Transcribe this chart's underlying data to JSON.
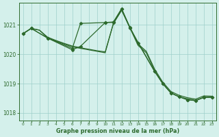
{
  "background_color": "#d4f0eb",
  "line_color": "#2d6a2d",
  "grid_color": "#9ecfca",
  "title": "Graphe pression niveau de la mer (hPa)",
  "ylim": [
    1017.75,
    1021.75
  ],
  "xlim": [
    -0.5,
    23.5
  ],
  "yticks": [
    1018,
    1019,
    1020,
    1021
  ],
  "figsize": [
    3.2,
    2.0
  ],
  "dpi": 100,
  "line1_x": [
    0,
    1,
    2,
    3,
    4,
    5,
    6,
    7,
    8,
    9,
    10,
    11,
    12,
    13,
    14,
    15,
    16,
    17,
    18,
    19,
    20,
    21,
    22,
    23
  ],
  "line1_y": [
    1020.7,
    1020.88,
    1020.82,
    1020.58,
    1020.47,
    1020.37,
    1020.28,
    1020.22,
    1020.17,
    1020.12,
    1020.08,
    1021.05,
    1021.5,
    1020.92,
    1020.35,
    1020.1,
    1019.5,
    1019.05,
    1018.73,
    1018.6,
    1018.52,
    1018.47,
    1018.58,
    1018.57
  ],
  "line2_x": [
    0,
    1,
    2,
    3,
    4,
    5,
    6,
    7,
    8,
    9,
    10,
    11,
    12,
    13,
    14,
    15,
    16,
    17,
    18,
    19,
    20,
    21,
    22,
    23
  ],
  "line2_y": [
    1020.7,
    1020.88,
    1020.82,
    1020.55,
    1020.45,
    1020.35,
    1020.25,
    1020.2,
    1020.15,
    1020.1,
    1020.05,
    1021.05,
    1021.5,
    1020.9,
    1020.3,
    1020.05,
    1019.45,
    1019.0,
    1018.68,
    1018.55,
    1018.48,
    1018.43,
    1018.53,
    1018.53
  ],
  "line3_x": [
    0,
    1,
    3,
    6,
    7,
    10,
    11,
    12,
    13,
    14,
    16,
    17,
    18,
    19,
    20,
    21,
    22,
    23
  ],
  "line3_y": [
    1020.7,
    1020.88,
    1020.55,
    1020.2,
    1021.05,
    1021.08,
    1021.08,
    1021.55,
    1020.92,
    1020.38,
    1019.42,
    1019.0,
    1018.68,
    1018.55,
    1018.45,
    1018.42,
    1018.53,
    1018.53
  ],
  "line4_x": [
    0,
    1,
    3,
    6,
    7,
    10,
    11,
    12,
    13,
    16,
    17,
    18,
    19,
    20,
    21,
    22,
    23
  ],
  "line4_y": [
    1020.7,
    1020.88,
    1020.55,
    1020.15,
    1020.27,
    1021.08,
    1021.1,
    1021.55,
    1020.9,
    1019.42,
    1019.0,
    1018.68,
    1018.55,
    1018.45,
    1018.42,
    1018.53,
    1018.53
  ]
}
